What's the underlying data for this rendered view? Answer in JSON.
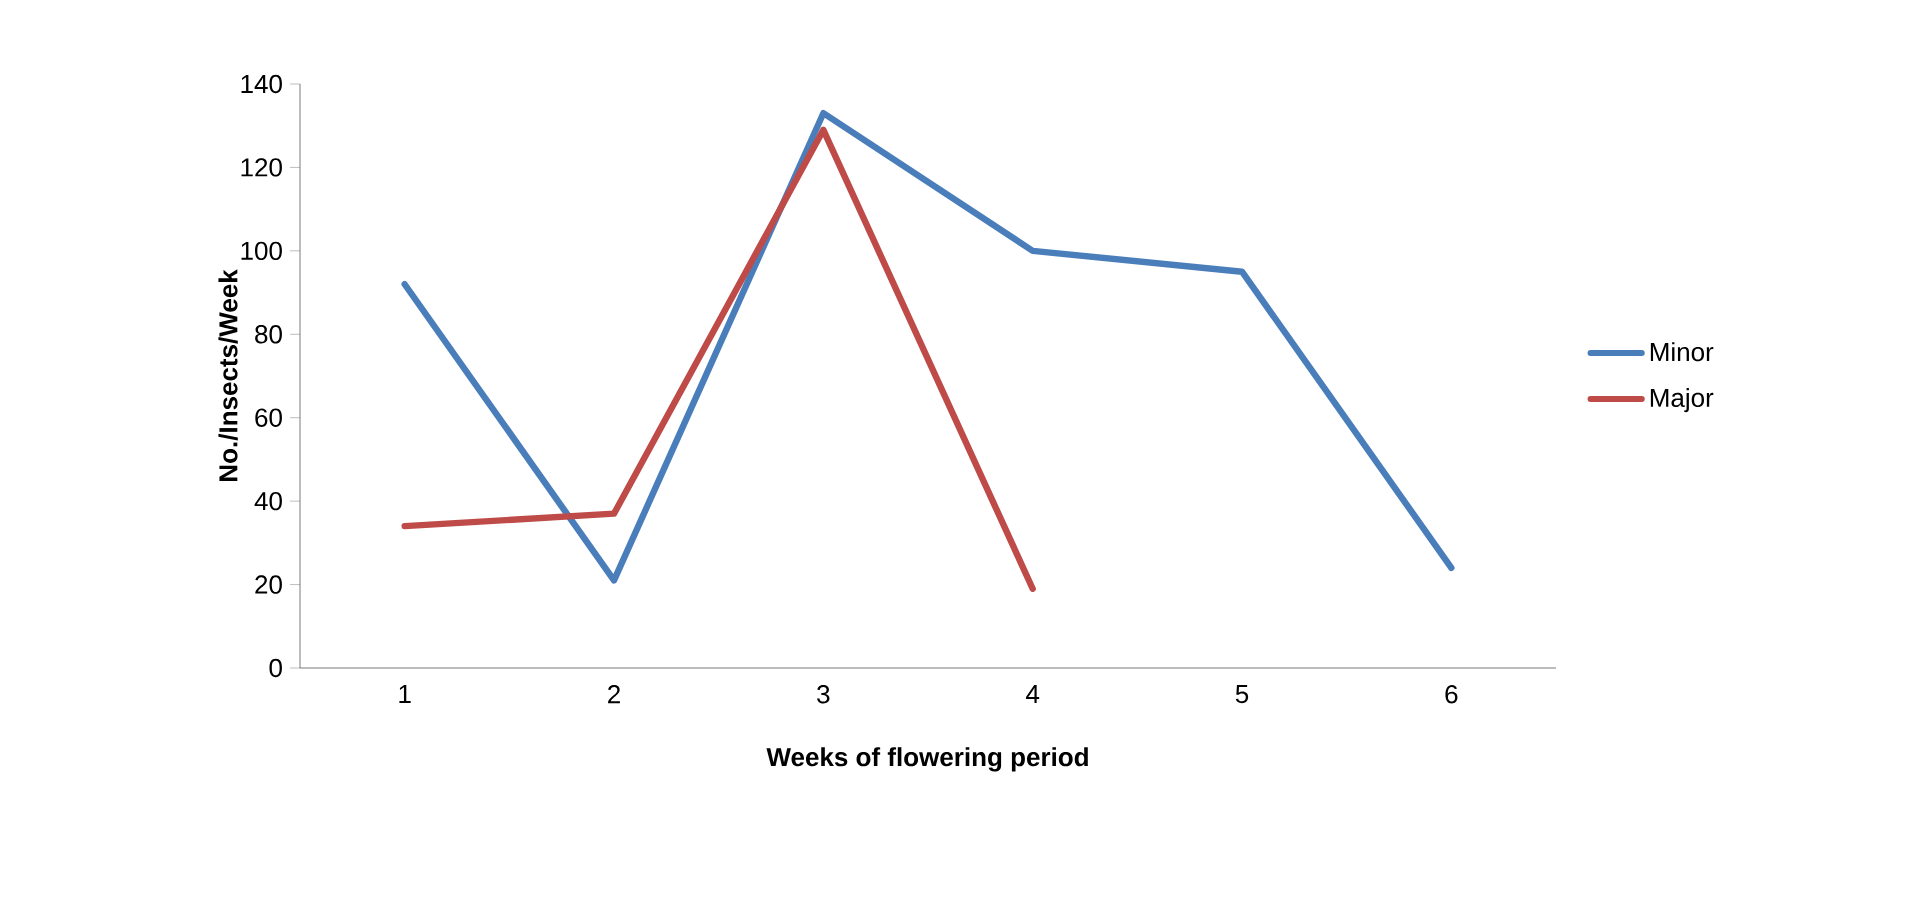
{
  "chart_data": {
    "type": "line",
    "xlabel": "Weeks of flowering period",
    "ylabel": "No./Insects/Week",
    "categories": [
      "1",
      "2",
      "3",
      "4",
      "5",
      "6"
    ],
    "ylim": [
      0,
      140
    ],
    "yticks": [
      0,
      20,
      40,
      60,
      80,
      100,
      120,
      140
    ],
    "grid": false,
    "legend": "right",
    "series": [
      {
        "name": "Minor",
        "color": "#4a7ebb",
        "values": [
          92,
          21,
          133,
          100,
          95,
          24
        ]
      },
      {
        "name": "Major",
        "color": "#be4b48",
        "values": [
          34,
          37,
          129,
          19,
          null,
          null
        ]
      }
    ]
  }
}
